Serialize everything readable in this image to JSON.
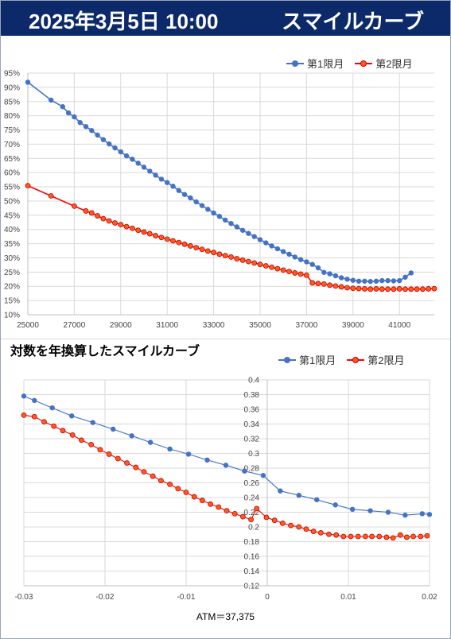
{
  "header": {
    "date": "2025年3月5日 10:00",
    "title": "スマイルカーブ"
  },
  "chart2_title": "対数を年換算したスマイルカーブ",
  "atm_label": "ATM＝37,375",
  "colors": {
    "header_bg": "#0c2a6a",
    "series1": "#4472c4",
    "series2": "#ff0000",
    "series2_marker": "#ff5a1f"
  },
  "chart_data": [
    {
      "type": "line",
      "title": "",
      "xlabel": "",
      "ylabel": "",
      "xlim": [
        25000,
        42500
      ],
      "ylim": [
        0.1,
        0.95
      ],
      "x_ticks": [
        25000,
        27000,
        29000,
        31000,
        33000,
        35000,
        37000,
        39000,
        41000
      ],
      "x_tick_labels": [
        "25000",
        "27000",
        "29000",
        "31000",
        "33000",
        "35000",
        "37000",
        "39000",
        "41000"
      ],
      "y_ticks": [
        0.1,
        0.15,
        0.2,
        0.25,
        0.3,
        0.35,
        0.4,
        0.45,
        0.5,
        0.55,
        0.6,
        0.65,
        0.7,
        0.75,
        0.8,
        0.85,
        0.9,
        0.95
      ],
      "y_tick_labels": [
        "10%",
        "15%",
        "20%",
        "25%",
        "30%",
        "35%",
        "40%",
        "45%",
        "50%",
        "55%",
        "60%",
        "65%",
        "70%",
        "75%",
        "80%",
        "85%",
        "90%",
        "95%"
      ],
      "grid": true,
      "legend_position": "top-right",
      "series": [
        {
          "name": "第1限月",
          "color": "#4472c4",
          "x": [
            25000,
            26000,
            26500,
            26750,
            27000,
            27250,
            27500,
            27750,
            28000,
            28250,
            28500,
            28750,
            29000,
            29250,
            29500,
            29750,
            30000,
            30250,
            30500,
            30750,
            31000,
            31250,
            31500,
            31750,
            32000,
            32250,
            32500,
            32750,
            33000,
            33250,
            33500,
            33750,
            34000,
            34250,
            34500,
            34750,
            35000,
            35250,
            35500,
            35750,
            36000,
            36250,
            36500,
            36750,
            37000,
            37250,
            37500,
            37750,
            38000,
            38250,
            38500,
            38750,
            39000,
            39250,
            39500,
            39750,
            40000,
            40250,
            40500,
            40750,
            41000,
            41250,
            41500
          ],
          "y": [
            0.918,
            0.855,
            0.832,
            0.81,
            0.796,
            0.776,
            0.762,
            0.748,
            0.732,
            0.716,
            0.701,
            0.687,
            0.673,
            0.659,
            0.647,
            0.633,
            0.619,
            0.605,
            0.591,
            0.577,
            0.565,
            0.552,
            0.537,
            0.523,
            0.511,
            0.497,
            0.484,
            0.471,
            0.458,
            0.446,
            0.433,
            0.421,
            0.409,
            0.397,
            0.386,
            0.375,
            0.364,
            0.353,
            0.342,
            0.332,
            0.322,
            0.313,
            0.303,
            0.294,
            0.286,
            0.277,
            0.265,
            0.249,
            0.244,
            0.237,
            0.23,
            0.225,
            0.221,
            0.218,
            0.218,
            0.217,
            0.218,
            0.22,
            0.22,
            0.219,
            0.22,
            0.232,
            0.247
          ]
        },
        {
          "name": "第2限月",
          "color": "#ff0000",
          "x": [
            25000,
            26000,
            27000,
            27500,
            27750,
            28000,
            28250,
            28500,
            28750,
            29000,
            29250,
            29500,
            29750,
            30000,
            30250,
            30500,
            30750,
            31000,
            31250,
            31500,
            31750,
            32000,
            32250,
            32500,
            32750,
            33000,
            33250,
            33500,
            33750,
            34000,
            34250,
            34500,
            34750,
            35000,
            35250,
            35500,
            35750,
            36000,
            36250,
            36500,
            36750,
            37000,
            37250,
            37500,
            37750,
            38000,
            38250,
            38500,
            38750,
            39000,
            39250,
            39500,
            39750,
            40000,
            40250,
            40500,
            40750,
            41000,
            41250,
            41500,
            41750,
            42000,
            42250,
            42500
          ],
          "y": [
            0.554,
            0.518,
            0.482,
            0.465,
            0.458,
            0.448,
            0.438,
            0.43,
            0.423,
            0.417,
            0.41,
            0.404,
            0.397,
            0.391,
            0.385,
            0.378,
            0.372,
            0.366,
            0.36,
            0.354,
            0.348,
            0.342,
            0.336,
            0.33,
            0.324,
            0.319,
            0.313,
            0.308,
            0.303,
            0.297,
            0.292,
            0.287,
            0.282,
            0.277,
            0.272,
            0.267,
            0.262,
            0.257,
            0.252,
            0.247,
            0.243,
            0.239,
            0.212,
            0.21,
            0.208,
            0.204,
            0.201,
            0.198,
            0.195,
            0.193,
            0.192,
            0.191,
            0.19,
            0.191,
            0.19,
            0.19,
            0.19,
            0.191,
            0.19,
            0.19,
            0.19,
            0.19,
            0.191,
            0.192
          ]
        }
      ]
    },
    {
      "type": "line",
      "title": "対数を年換算したスマイルカーブ",
      "xlabel": "ATM＝37,375",
      "ylabel": "",
      "xlim": [
        -0.03,
        0.02
      ],
      "ylim": [
        0.12,
        0.4
      ],
      "x_ticks": [
        -0.03,
        -0.02,
        -0.01,
        0,
        0.01,
        0.02
      ],
      "x_tick_labels": [
        "-0.03",
        "-0.02",
        "-0.01",
        "0",
        "0.01",
        "0.02"
      ],
      "y_ticks": [
        0.12,
        0.14,
        0.16,
        0.18,
        0.2,
        0.22,
        0.24,
        0.26,
        0.28,
        0.3,
        0.32,
        0.34,
        0.36,
        0.38,
        0.4
      ],
      "y_tick_labels": [
        "0.12",
        "0.14",
        "0.16",
        "0.18",
        "0.2",
        "0.22",
        "0.24",
        "0.26",
        "0.28",
        "0.3",
        "0.32",
        "0.34",
        "0.36",
        "0.38",
        "0.4"
      ],
      "grid": true,
      "legend_position": "top-right",
      "series": [
        {
          "name": "第1限月",
          "color": "#4472c4",
          "x": [
            -0.03,
            -0.0287,
            -0.0265,
            -0.0241,
            -0.0215,
            -0.019,
            -0.0167,
            -0.0144,
            -0.012,
            -0.0097,
            -0.0074,
            -0.0051,
            -0.0028,
            -0.0005,
            0.0016,
            0.0039,
            0.0061,
            0.0084,
            0.0105,
            0.0127,
            0.0149,
            0.017,
            0.0191,
            0.02
          ],
          "y": [
            0.378,
            0.372,
            0.362,
            0.351,
            0.342,
            0.333,
            0.324,
            0.315,
            0.306,
            0.299,
            0.291,
            0.284,
            0.276,
            0.27,
            0.249,
            0.243,
            0.237,
            0.23,
            0.224,
            0.222,
            0.22,
            0.216,
            0.218,
            0.217
          ]
        },
        {
          "name": "第2限月",
          "color": "#ff0000",
          "x": [
            -0.03,
            -0.0287,
            -0.0275,
            -0.0263,
            -0.0252,
            -0.024,
            -0.0229,
            -0.0217,
            -0.0206,
            -0.0195,
            -0.0184,
            -0.0173,
            -0.0162,
            -0.0152,
            -0.0141,
            -0.0131,
            -0.012,
            -0.011,
            -0.01,
            -0.009,
            -0.008,
            -0.007,
            -0.006,
            -0.005,
            -0.004,
            -0.003,
            -0.002,
            -0.0013,
            -0.0001,
            0.0009,
            0.0019,
            0.0029,
            0.0039,
            0.0048,
            0.0057,
            0.0066,
            0.0076,
            0.0085,
            0.0094,
            0.0103,
            0.0112,
            0.0121,
            0.0129,
            0.0138,
            0.0147,
            0.0155,
            0.0164,
            0.0172,
            0.018,
            0.0189,
            0.0197
          ],
          "y": [
            0.352,
            0.35,
            0.343,
            0.337,
            0.331,
            0.325,
            0.318,
            0.312,
            0.305,
            0.299,
            0.293,
            0.287,
            0.281,
            0.275,
            0.269,
            0.263,
            0.258,
            0.252,
            0.247,
            0.241,
            0.236,
            0.231,
            0.227,
            0.222,
            0.218,
            0.214,
            0.21,
            0.225,
            0.213,
            0.209,
            0.205,
            0.202,
            0.2,
            0.197,
            0.194,
            0.192,
            0.19,
            0.189,
            0.187,
            0.187,
            0.187,
            0.187,
            0.187,
            0.187,
            0.186,
            0.185,
            0.189,
            0.186,
            0.187,
            0.187,
            0.188
          ]
        }
      ]
    }
  ]
}
